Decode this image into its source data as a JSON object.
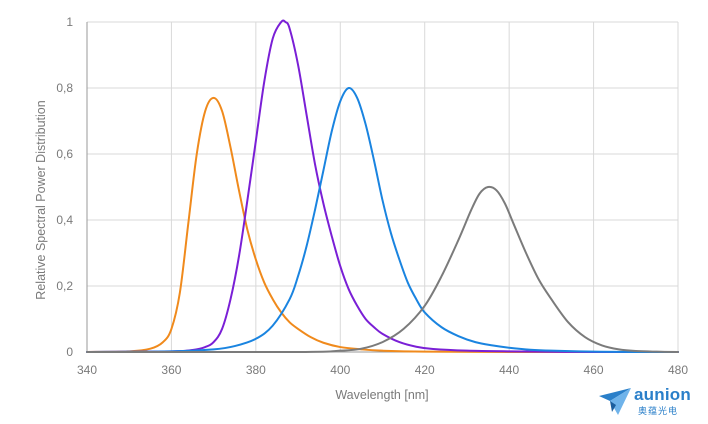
{
  "chart_data": {
    "type": "line",
    "xlabel": "Wavelength [nm]",
    "ylabel": "Relative Spectral Power Distribution",
    "xlim": [
      340,
      480
    ],
    "ylim": [
      0,
      1
    ],
    "xticks": [
      340,
      360,
      380,
      400,
      420,
      440,
      460,
      480
    ],
    "yticks": [
      0,
      0.2,
      0.4,
      0.6,
      0.8,
      1
    ],
    "ytick_labels": [
      "0",
      "0,2",
      "0,4",
      "0,6",
      "0,8",
      "1"
    ],
    "grid": true,
    "legend": "none",
    "series": [
      {
        "color": "#f08a1c",
        "x": [
          340,
          350,
          355,
          358,
          360,
          362,
          364,
          366,
          368,
          370,
          372,
          374,
          376,
          378,
          380,
          382,
          384,
          386,
          388,
          390,
          393,
          396,
          400,
          405,
          410,
          420,
          440,
          480
        ],
        "y": [
          0.0,
          0.002,
          0.01,
          0.03,
          0.07,
          0.18,
          0.39,
          0.6,
          0.73,
          0.77,
          0.73,
          0.62,
          0.49,
          0.37,
          0.28,
          0.21,
          0.16,
          0.12,
          0.09,
          0.07,
          0.045,
          0.028,
          0.015,
          0.008,
          0.004,
          0.001,
          0.0,
          0.0
        ]
      },
      {
        "color": "#7a1fd6",
        "x": [
          340,
          360,
          365,
          368,
          370,
          372,
          374,
          376,
          378,
          380,
          382,
          384,
          386,
          387,
          388,
          390,
          392,
          394,
          396,
          398,
          400,
          402,
          404,
          406,
          408,
          410,
          414,
          418,
          422,
          430,
          440,
          460,
          480
        ],
        "y": [
          0.0,
          0.002,
          0.006,
          0.015,
          0.03,
          0.07,
          0.16,
          0.29,
          0.46,
          0.64,
          0.82,
          0.95,
          1.0,
          1.0,
          0.98,
          0.87,
          0.72,
          0.57,
          0.45,
          0.35,
          0.26,
          0.19,
          0.14,
          0.1,
          0.075,
          0.055,
          0.03,
          0.016,
          0.009,
          0.004,
          0.002,
          0.0,
          0.0
        ]
      },
      {
        "color": "#1a84e0",
        "x": [
          340,
          360,
          370,
          375,
          380,
          384,
          388,
          390,
          392,
          394,
          396,
          398,
          400,
          402,
          404,
          406,
          408,
          410,
          412,
          414,
          416,
          418,
          420,
          424,
          428,
          432,
          436,
          440,
          445,
          450,
          460,
          470,
          480
        ],
        "y": [
          0.0,
          0.002,
          0.008,
          0.018,
          0.04,
          0.08,
          0.16,
          0.23,
          0.32,
          0.43,
          0.55,
          0.67,
          0.76,
          0.8,
          0.77,
          0.69,
          0.58,
          0.46,
          0.36,
          0.28,
          0.21,
          0.16,
          0.12,
          0.075,
          0.048,
          0.03,
          0.02,
          0.013,
          0.007,
          0.004,
          0.001,
          0.0,
          0.0
        ]
      },
      {
        "color": "#7b7b7b",
        "x": [
          340,
          390,
          400,
          405,
          410,
          415,
          420,
          424,
          428,
          431,
          433,
          435,
          437,
          439,
          441,
          444,
          447,
          450,
          454,
          458,
          462,
          466,
          470,
          475,
          480
        ],
        "y": [
          0.0,
          0.0,
          0.004,
          0.01,
          0.03,
          0.07,
          0.14,
          0.23,
          0.34,
          0.43,
          0.48,
          0.5,
          0.49,
          0.45,
          0.39,
          0.3,
          0.22,
          0.16,
          0.09,
          0.045,
          0.02,
          0.008,
          0.003,
          0.001,
          0.0
        ]
      }
    ]
  },
  "logo": {
    "word": "aunion",
    "subtitle": "奥蕴光电",
    "color": "#2a7fc9"
  }
}
